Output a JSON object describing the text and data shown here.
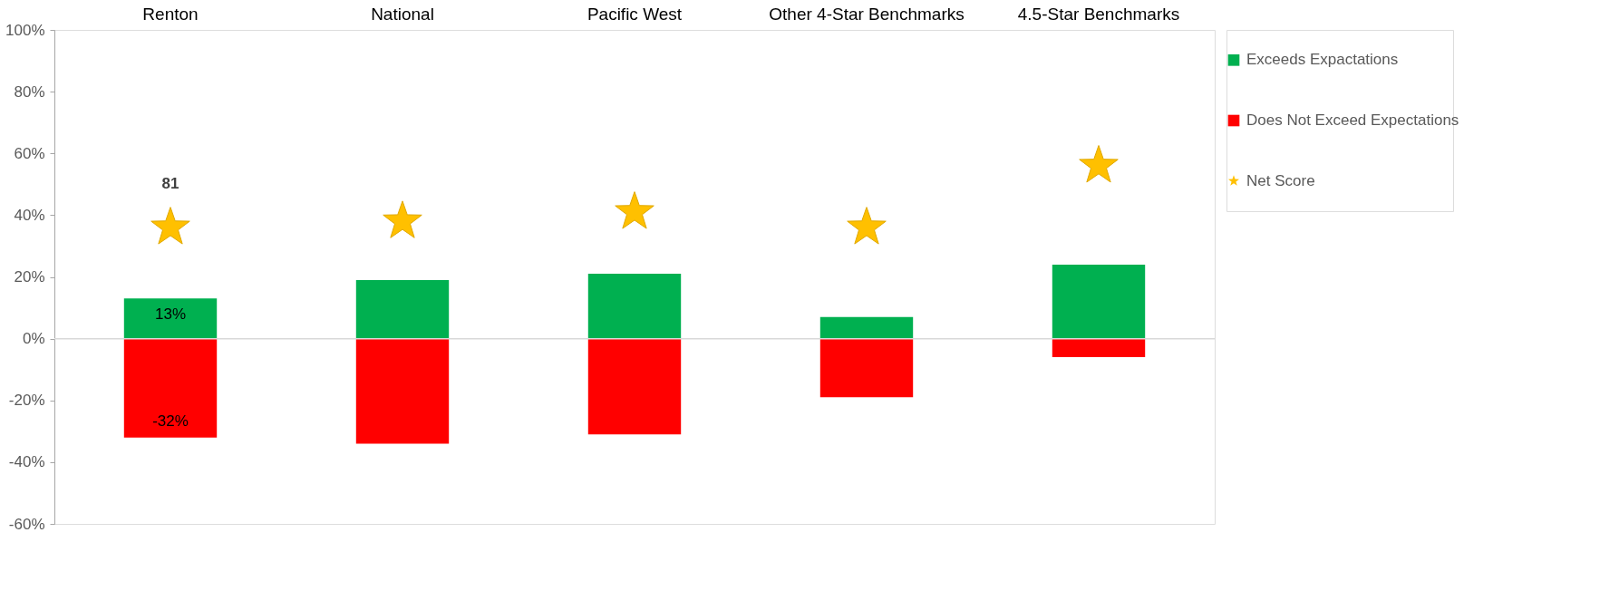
{
  "chart_data": {
    "type": "bar",
    "stacked": true,
    "annotations": [
      {
        "text": "81",
        "x": "Renton",
        "y": 36
      }
    ],
    "categories": [
      "Renton",
      "National",
      "Pacific West",
      "Other 4-Star Benchmarks",
      "4.5-Star Benchmarks"
    ],
    "series": [
      {
        "name": "Exceeds Expactations",
        "color": "#00b050",
        "values": [
          13,
          19,
          21,
          7,
          24
        ],
        "value_labels": [
          "13%",
          null,
          null,
          null,
          null
        ]
      },
      {
        "name": "Does Not Exceed Expectations",
        "color": "#ff0000",
        "values": [
          -32,
          -34,
          -31,
          -19,
          -6
        ],
        "value_labels": [
          "-32%",
          null,
          null,
          null,
          null
        ]
      },
      {
        "name": "Net Score",
        "type": "scatter",
        "marker": "star",
        "color": "#ffc000",
        "values": [
          36,
          38,
          41,
          36,
          56
        ]
      }
    ],
    "ylim": [
      -60,
      100
    ],
    "yticks": [
      {
        "value": -60,
        "label": "-60%"
      },
      {
        "value": -40,
        "label": "-40%"
      },
      {
        "value": -20,
        "label": "-20%"
      },
      {
        "value": 0,
        "label": "0%"
      },
      {
        "value": 20,
        "label": "20%"
      },
      {
        "value": 40,
        "label": "40%"
      },
      {
        "value": 60,
        "label": "60%"
      },
      {
        "value": 80,
        "label": "80%"
      },
      {
        "value": 100,
        "label": "100%"
      }
    ],
    "ref_lines": [
      {
        "axis": "y",
        "value": 0,
        "label": null,
        "color": "#d9d9d9"
      }
    ],
    "grid": false,
    "legend": "right"
  }
}
